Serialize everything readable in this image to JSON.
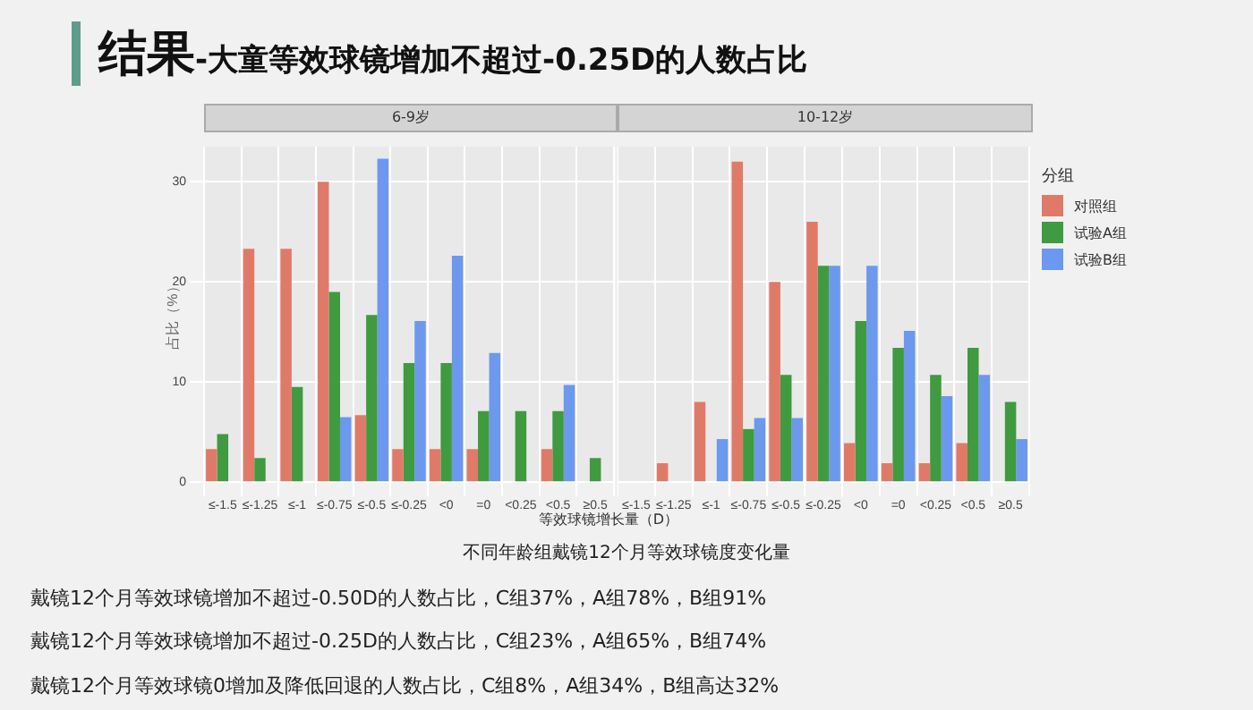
{
  "chart_data": [
    {
      "type": "bar",
      "title": "6-9岁",
      "xlabel": "等效球镜增长量（D）",
      "ylabel": "占比（%）",
      "categories": [
        "≤-1.5",
        "≤-1.25",
        "≤-1",
        "≤-0.75",
        "≤-0.5",
        "≤-0.25",
        "<0",
        "=0",
        "<0.25",
        "<0.5",
        "≥0.5"
      ],
      "series": [
        {
          "color": "#e07a68",
          "values": [
            3.3,
            23.3,
            23.3,
            30,
            6.7,
            3.3,
            3.3,
            3.3,
            0,
            3.3,
            0
          ]
        },
        {
          "color": "#3f9a40",
          "values": [
            4.8,
            2.4,
            9.5,
            19,
            16.7,
            11.9,
            11.9,
            7.1,
            7.1,
            7.1,
            2.4
          ]
        },
        {
          "color": "#6c98ee",
          "values": [
            0,
            0,
            0,
            6.5,
            32.3,
            16.1,
            22.6,
            12.9,
            0,
            9.7,
            0
          ]
        }
      ],
      "ylim": [
        0,
        33.5
      ],
      "yticks": [
        0,
        10,
        20,
        30
      ],
      "grid": true,
      "annotations": [
        "结果-大童等效球镜增加不超过-0.25D的人数占比",
        "不同年龄组戴镜12个月等效球镜度变化量",
        "戴镜12个月等效球镜增加不超过-0.50D的人数占比，C组37%，A组78%，B组91%",
        "戴镜12个月等效球镜增加不超过-0.25D的人数占比，C组23%，A组65%，B组74%",
        "戴镜12个月等效球镜0增加及降低回退的人数占比，C组8%，A组34%，B组高达32%"
      ]
    },
    {
      "type": "bar",
      "title": "10-12岁",
      "legend_title": "分组",
      "categories": [
        "≤-1.5",
        "≤-1.25",
        "≤-1",
        "≤-0.75",
        "≤-0.5",
        "≤-0.25",
        "<0",
        "=0",
        "<0.25",
        "<0.5",
        "≥0.5"
      ],
      "series": [
        {
          "name": "对照组",
          "color": "#e07a68",
          "values": [
            0,
            1.9,
            8,
            32,
            20,
            26,
            3.9,
            1.9,
            1.9,
            3.9,
            0
          ]
        },
        {
          "name": "试验A组",
          "color": "#3f9a40",
          "values": [
            0,
            0,
            0,
            5.3,
            10.7,
            21.6,
            16.1,
            13.4,
            10.7,
            13.4,
            8
          ]
        },
        {
          "name": "试验B组",
          "color": "#6c98ee",
          "values": [
            0,
            0,
            4.3,
            6.4,
            6.4,
            21.6,
            21.6,
            15.1,
            8.6,
            10.7,
            4.3
          ]
        }
      ],
      "ylim": [
        0,
        33.5
      ],
      "yticks": [
        0,
        10,
        20,
        30
      ],
      "grid": true,
      "legend": "right",
      "tick_labels": "x"
    }
  ]
}
